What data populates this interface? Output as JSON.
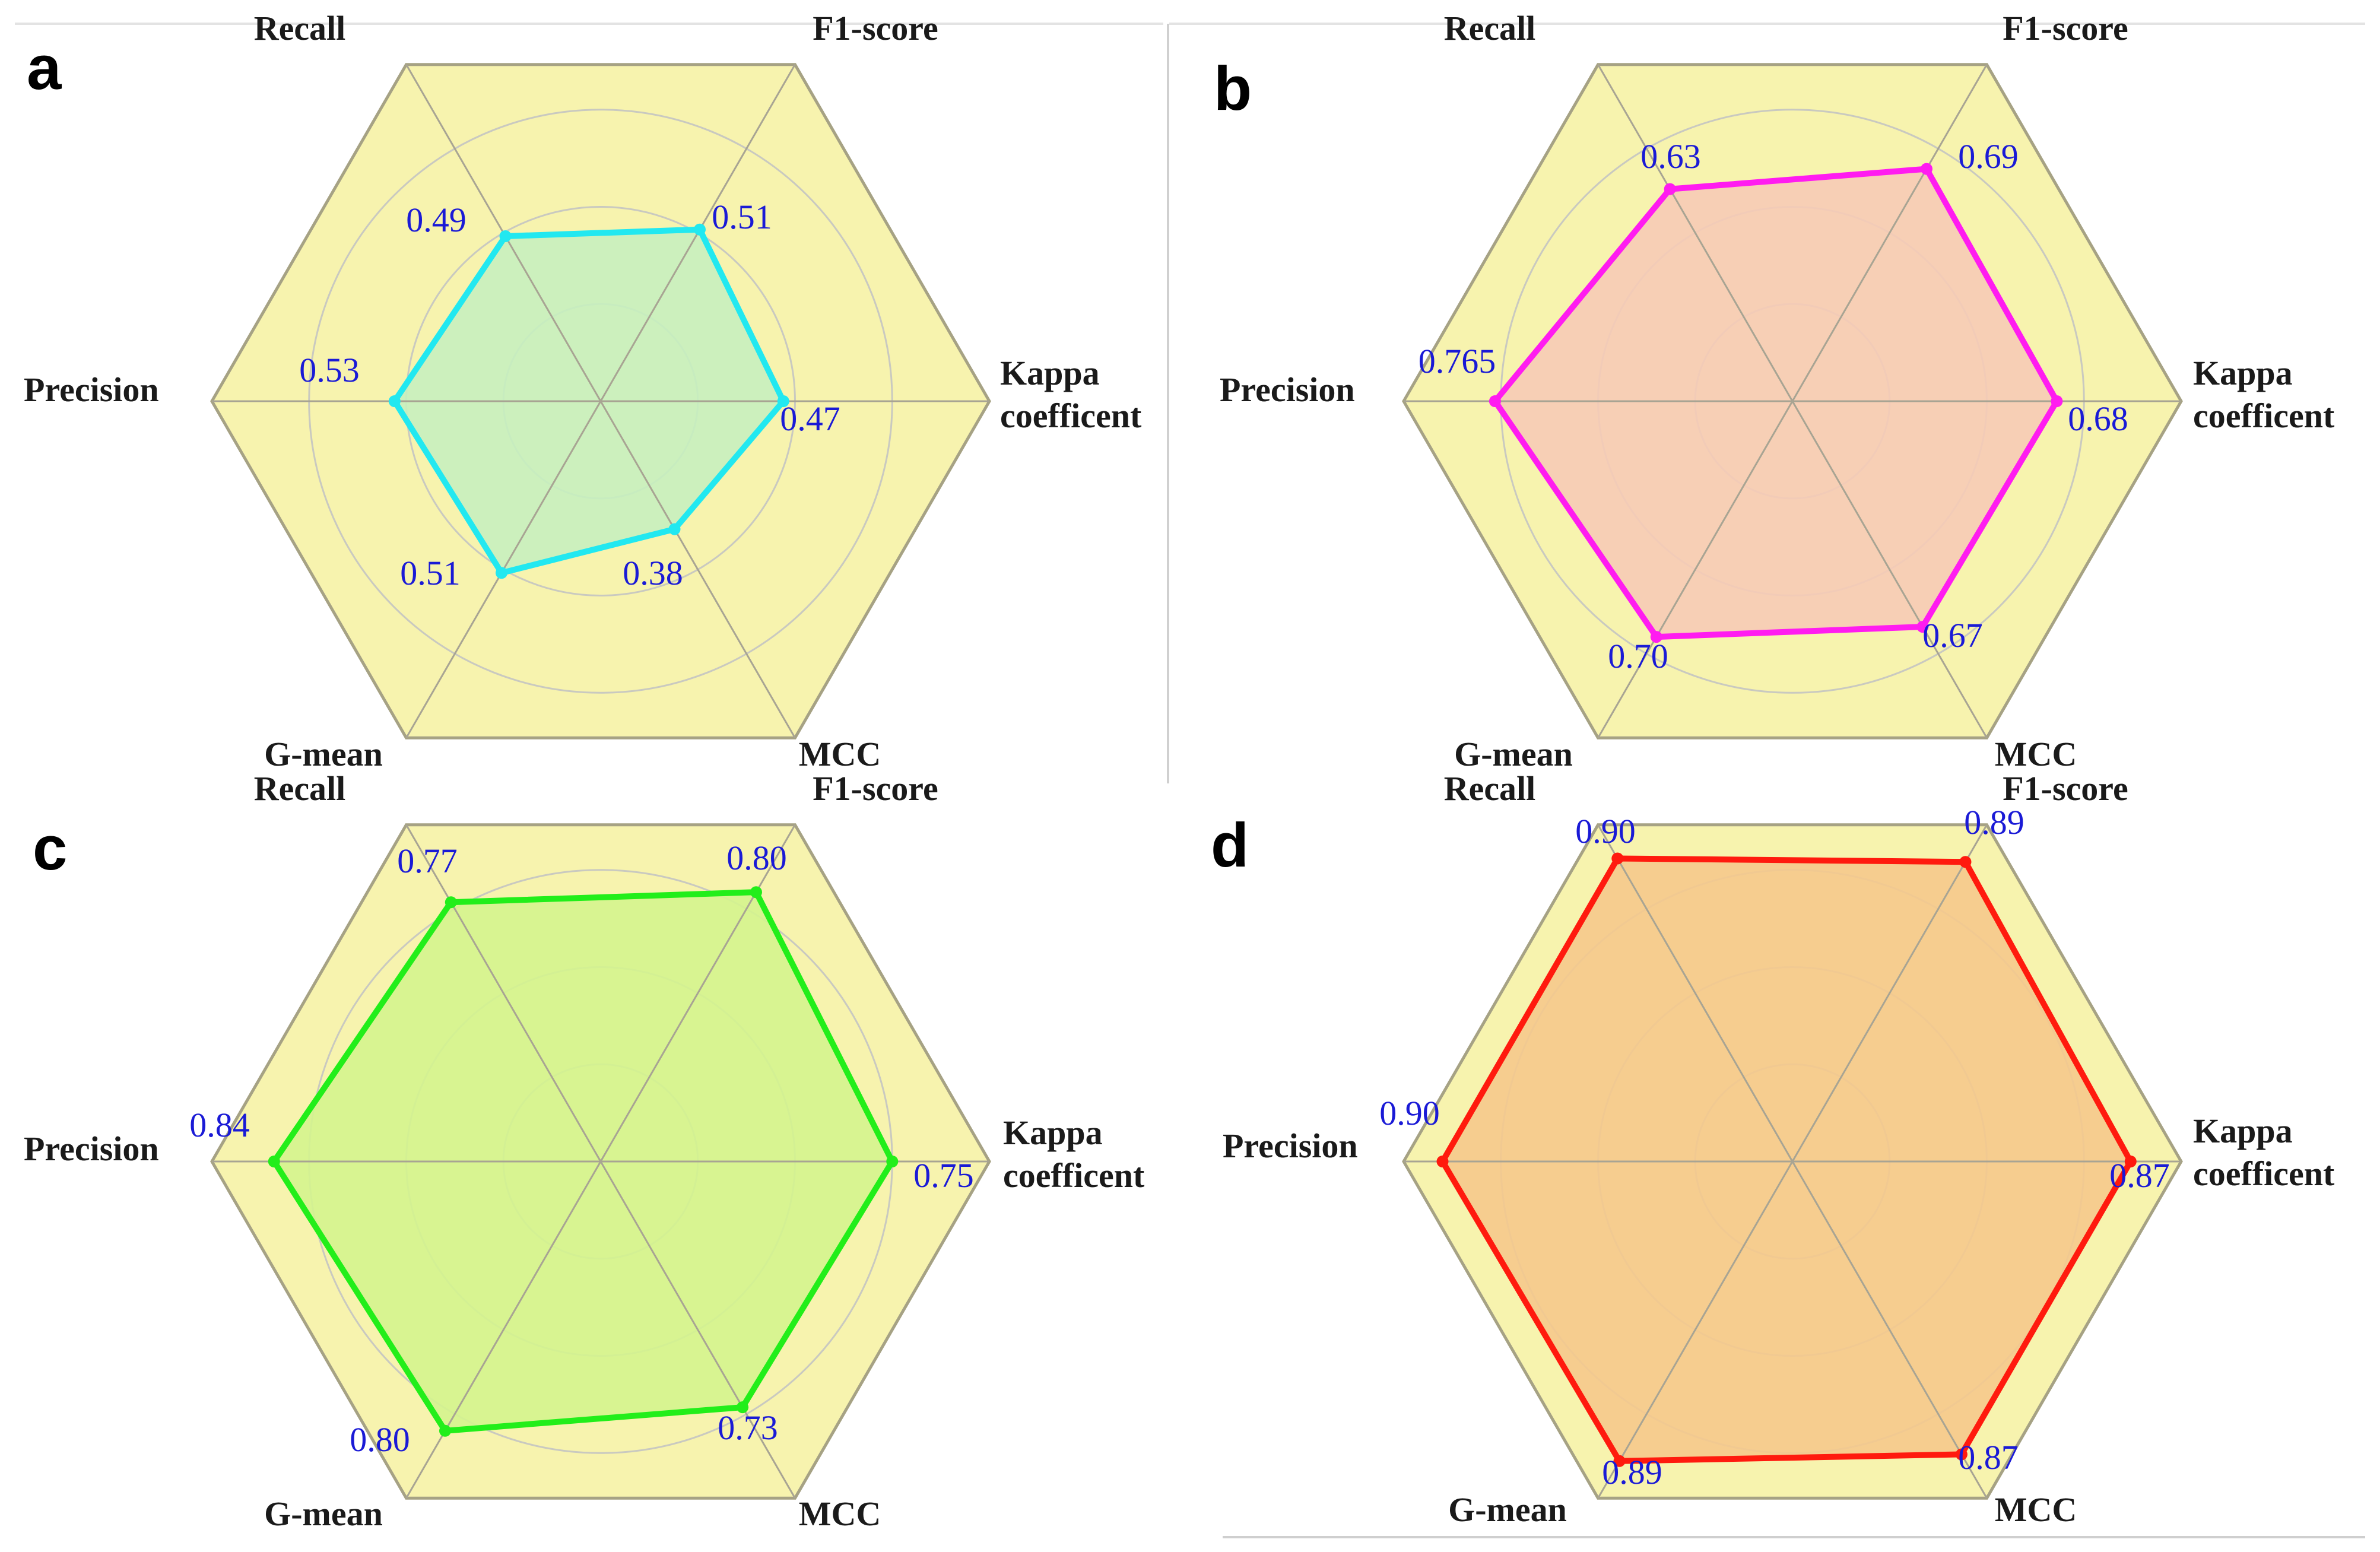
{
  "style": {
    "hex_fill": "#f7f3ae",
    "hex_edge": "#a6a284",
    "ring_color": "#c9c9c0",
    "spoke_color": "#a8a493",
    "value_color": "#1a1ad6"
  },
  "chart_data": [
    {
      "panel": "a",
      "type": "radar",
      "axes": [
        "Recall",
        "F1-score",
        "Kappa|coefficent",
        "MCC",
        "G-mean",
        "Precision"
      ],
      "values": [
        0.49,
        0.51,
        0.47,
        0.38,
        0.51,
        0.53
      ],
      "value_labels": [
        "0.49",
        "0.51",
        "0.47",
        "0.38",
        "0.51",
        "0.53"
      ],
      "range": [
        0,
        1
      ],
      "line_color": "#22e8f0",
      "fill_color": "#c6efbf"
    },
    {
      "panel": "b",
      "type": "radar",
      "axes": [
        "Recall",
        "F1-score",
        "Kappa|coefficent",
        "MCC",
        "G-mean",
        "Precision"
      ],
      "values": [
        0.63,
        0.69,
        0.68,
        0.67,
        0.7,
        0.765
      ],
      "value_labels": [
        "0.63",
        "0.69",
        "0.68",
        "0.67",
        "0.70",
        "0.765"
      ],
      "range": [
        0,
        1
      ],
      "line_color": "#ff1cf0",
      "fill_color": "#f6cbb6"
    },
    {
      "panel": "c",
      "type": "radar",
      "axes": [
        "Recall",
        "F1-score",
        "Kappa|coefficent",
        "MCC",
        "G-mean",
        "Precision"
      ],
      "values": [
        0.77,
        0.8,
        0.75,
        0.73,
        0.8,
        0.84
      ],
      "value_labels": [
        "0.77",
        "0.80",
        "0.75",
        "0.73",
        "0.80",
        "0.84"
      ],
      "range": [
        0,
        1
      ],
      "line_color": "#22ee1a",
      "fill_color": "#d4f48e"
    },
    {
      "panel": "d",
      "type": "radar",
      "axes": [
        "Recall",
        "F1-score",
        "Kappa|coefficent",
        "MCC",
        "G-mean",
        "Precision"
      ],
      "values": [
        0.9,
        0.89,
        0.87,
        0.87,
        0.89,
        0.9
      ],
      "value_labels": [
        "0.90",
        "0.89",
        "0.87",
        "0.87",
        "0.89",
        "0.90"
      ],
      "range": [
        0,
        1
      ],
      "line_color": "#ff1a0e",
      "fill_color": "#f5c98c"
    }
  ]
}
